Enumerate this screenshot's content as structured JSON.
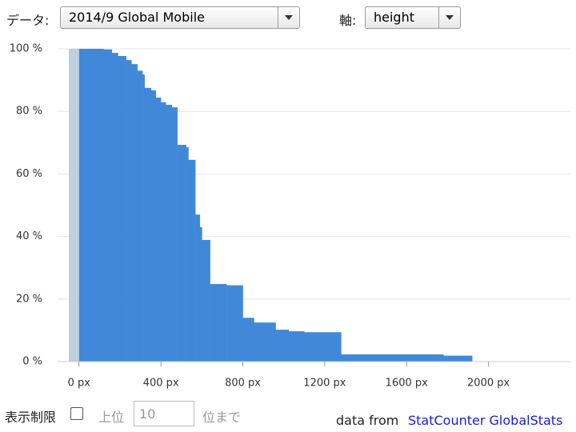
{
  "controls": {
    "data_label": "データ:",
    "data_value": "2014/9 Global Mobile",
    "axis_label": "軸:",
    "axis_value": "height",
    "limit_label": "表示制限",
    "rank_prefix": "上位",
    "rank_value": 10,
    "rank_suffix": "位まで",
    "source_label": "data from",
    "source_link": "StatCounter GlobalStats"
  },
  "chart_data": {
    "type": "step-area",
    "color": "#4189d8",
    "band_color": "#bfcfdb",
    "grid": true,
    "x": [
      0,
      120,
      160,
      190,
      230,
      256,
      285,
      310,
      320,
      352,
      375,
      400,
      424,
      453,
      480,
      523,
      534,
      568,
      590,
      600,
      640,
      720,
      800,
      854,
      960,
      1024,
      1100,
      1280,
      1780,
      1920
    ],
    "values": [
      100,
      99.8,
      98.7,
      97.7,
      96.4,
      95.1,
      93,
      91.8,
      87.5,
      86.7,
      84.4,
      82.9,
      82.1,
      81.3,
      69.3,
      68.5,
      64.5,
      47,
      43,
      38.9,
      24.8,
      24.4,
      14,
      12.5,
      10.2,
      9.7,
      9.4,
      2.3,
      1.9,
      0
    ],
    "xlim": [
      -50,
      2400
    ],
    "ylim": [
      0,
      100
    ],
    "xticks": [
      {
        "value": 0,
        "label": "0 px"
      },
      {
        "value": 400,
        "label": "400 px"
      },
      {
        "value": 800,
        "label": "800 px"
      },
      {
        "value": 1200,
        "label": "1200 px"
      },
      {
        "value": 1600,
        "label": "1600 px"
      },
      {
        "value": 2000,
        "label": "2000 px"
      }
    ],
    "yticks": [
      {
        "value": 0,
        "label": "0 %"
      },
      {
        "value": 20,
        "label": "20 %"
      },
      {
        "value": 40,
        "label": "40 %"
      },
      {
        "value": 60,
        "label": "60 %"
      },
      {
        "value": 80,
        "label": "80 %"
      },
      {
        "value": 100,
        "label": "100 %"
      }
    ]
  }
}
